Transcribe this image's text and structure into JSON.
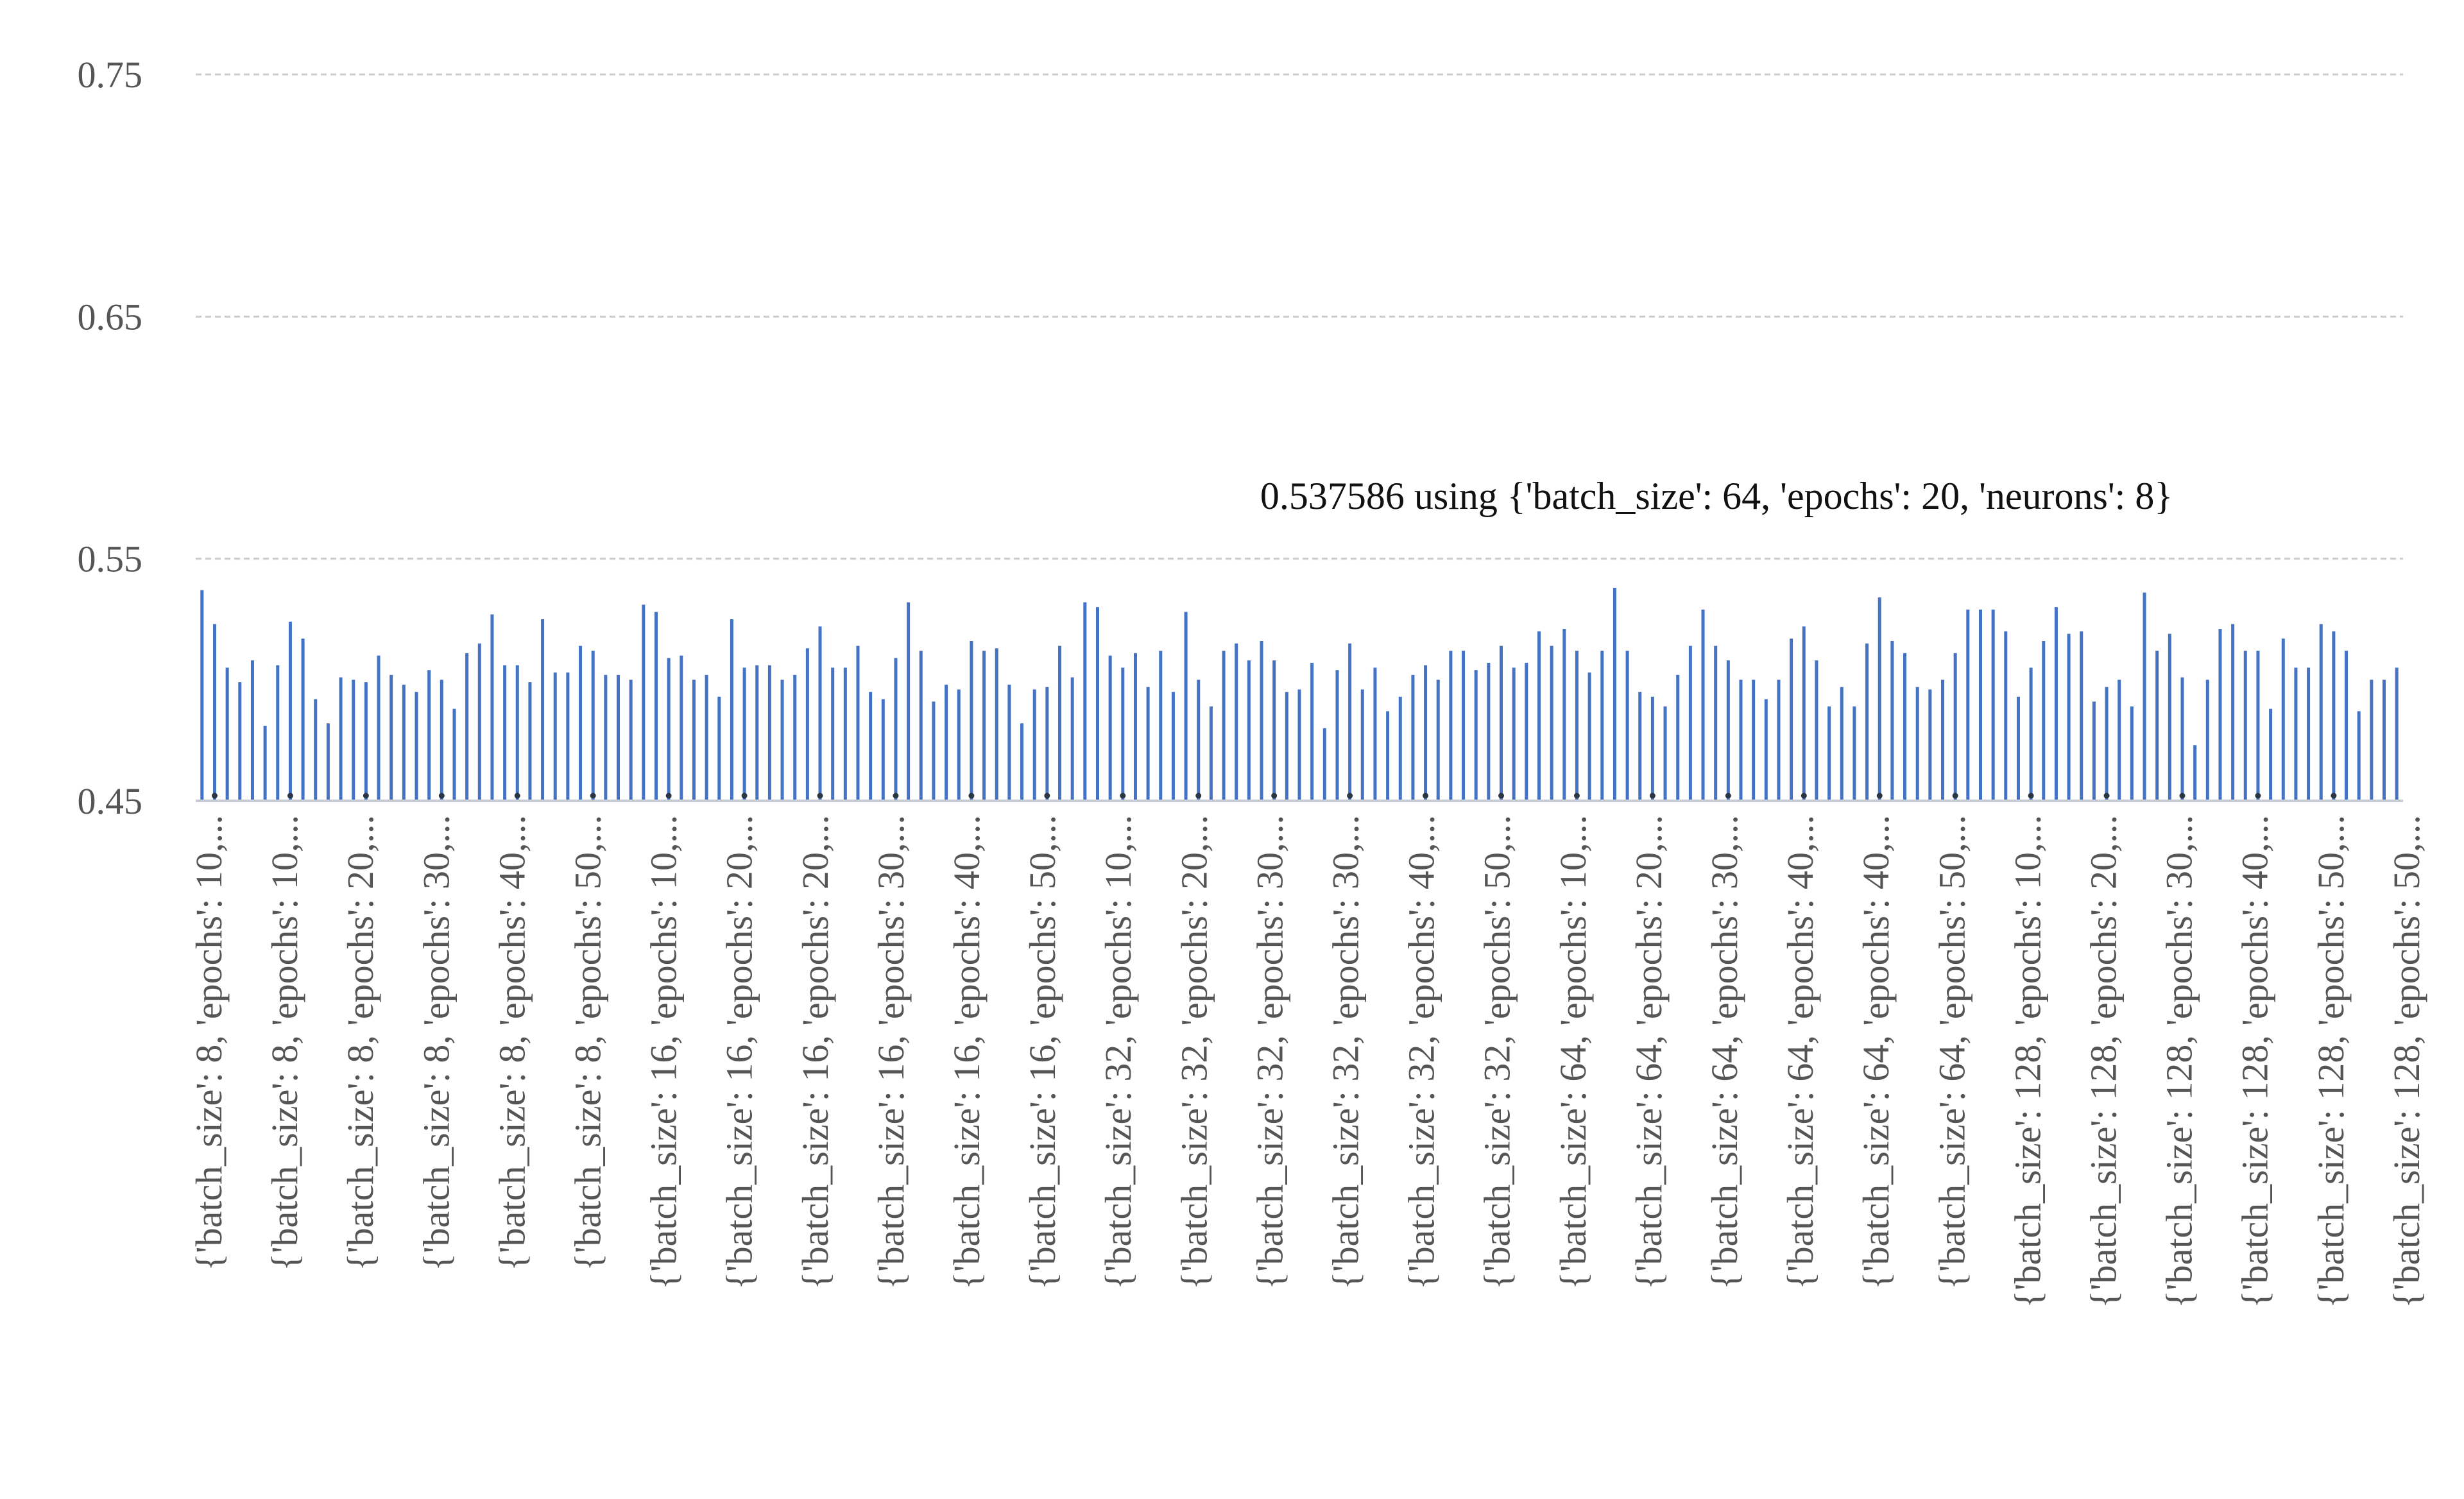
{
  "chart_data": {
    "type": "bar",
    "ylim": [
      0.45,
      0.75
    ],
    "yticks": [
      "0.45",
      "0.55",
      "0.65",
      "0.75"
    ],
    "grid": true,
    "colors": {
      "bar": "#4472c4",
      "highlight": "#2b3645",
      "dot": "#2b3645"
    },
    "highlight_index": 188,
    "annotation": "0.537586 using {'batch_size': 64, 'epochs': 20, 'neurons': 8}",
    "tick_labels": [
      "{'batch_size': 8, 'epochs': 10,...",
      "{'batch_size': 8, 'epochs': 10,...",
      "{'batch_size': 8, 'epochs': 20,...",
      "{'batch_size': 8, 'epochs': 30,...",
      "{'batch_size': 8, 'epochs': 40,...",
      "{'batch_size': 8, 'epochs': 50,...",
      "{'batch_size': 16, 'epochs': 10,...",
      "{'batch_size': 16, 'epochs': 20,...",
      "{'batch_size': 16, 'epochs': 20,...",
      "{'batch_size': 16, 'epochs': 30,...",
      "{'batch_size': 16, 'epochs': 40,...",
      "{'batch_size': 16, 'epochs': 50,...",
      "{'batch_size': 32, 'epochs': 10,...",
      "{'batch_size': 32, 'epochs': 20,...",
      "{'batch_size': 32, 'epochs': 30,...",
      "{'batch_size': 32, 'epochs': 30,...",
      "{'batch_size': 32, 'epochs': 40,...",
      "{'batch_size': 32, 'epochs': 50,...",
      "{'batch_size': 64, 'epochs': 10,...",
      "{'batch_size': 64, 'epochs': 20,...",
      "{'batch_size': 64, 'epochs': 30,...",
      "{'batch_size': 64, 'epochs': 40,...",
      "{'batch_size': 64, 'epochs': 40,...",
      "{'batch_size': 64, 'epochs': 50,...",
      "{'batch_size': 128, 'epochs': 10,...",
      "{'batch_size': 128, 'epochs': 20,...",
      "{'batch_size': 128, 'epochs': 30,...",
      "{'batch_size': 128, 'epochs': 40,...",
      "{'batch_size': 128, 'epochs': 50,...",
      "{'batch_size': 128, 'epochs': 50,..."
    ],
    "values": [
      0.537,
      0.523,
      0.505,
      0.499,
      0.508,
      0.481,
      0.506,
      0.524,
      0.517,
      0.492,
      0.482,
      0.501,
      0.5,
      0.499,
      0.51,
      0.502,
      0.498,
      0.495,
      0.504,
      0.5,
      0.488,
      0.511,
      0.515,
      0.527,
      0.506,
      0.506,
      0.499,
      0.525,
      0.503,
      0.503,
      0.514,
      0.512,
      0.502,
      0.502,
      0.5,
      0.531,
      0.528,
      0.509,
      0.51,
      0.5,
      0.502,
      0.493,
      0.525,
      0.505,
      0.506,
      0.506,
      0.5,
      0.502,
      0.513,
      0.522,
      0.505,
      0.505,
      0.514,
      0.495,
      0.492,
      0.509,
      0.532,
      0.512,
      0.491,
      0.498,
      0.496,
      0.516,
      0.512,
      0.513,
      0.498,
      0.482,
      0.496,
      0.497,
      0.514,
      0.501,
      0.532,
      0.53,
      0.51,
      0.505,
      0.511,
      0.497,
      0.512,
      0.495,
      0.528,
      0.5,
      0.489,
      0.512,
      0.515,
      0.508,
      0.516,
      0.508,
      0.495,
      0.496,
      0.507,
      0.48,
      0.504,
      0.515,
      0.496,
      0.505,
      0.487,
      0.493,
      0.502,
      0.506,
      0.5,
      0.512,
      0.512,
      0.504,
      0.507,
      0.514,
      0.505,
      0.507,
      0.52,
      0.514,
      0.521,
      0.512,
      0.503,
      0.512,
      0.538,
      0.512,
      0.495,
      0.493,
      0.489,
      0.502,
      0.514,
      0.529,
      0.514,
      0.508,
      0.5,
      0.5,
      0.492,
      0.5,
      0.517,
      0.522,
      0.508,
      0.489,
      0.497,
      0.489,
      0.515,
      0.534,
      0.516,
      0.511,
      0.497,
      0.496,
      0.5,
      0.511,
      0.529,
      0.529,
      0.529,
      0.52,
      0.493,
      0.505,
      0.516,
      0.53,
      0.519,
      0.52,
      0.491,
      0.497,
      0.5,
      0.489,
      0.536,
      0.512,
      0.519,
      0.501,
      0.473,
      0.5,
      0.521,
      0.523,
      0.512,
      0.512,
      0.488,
      0.517,
      0.505,
      0.505,
      0.523,
      0.52,
      0.512,
      0.487,
      0.5,
      0.5,
      0.505
    ]
  }
}
